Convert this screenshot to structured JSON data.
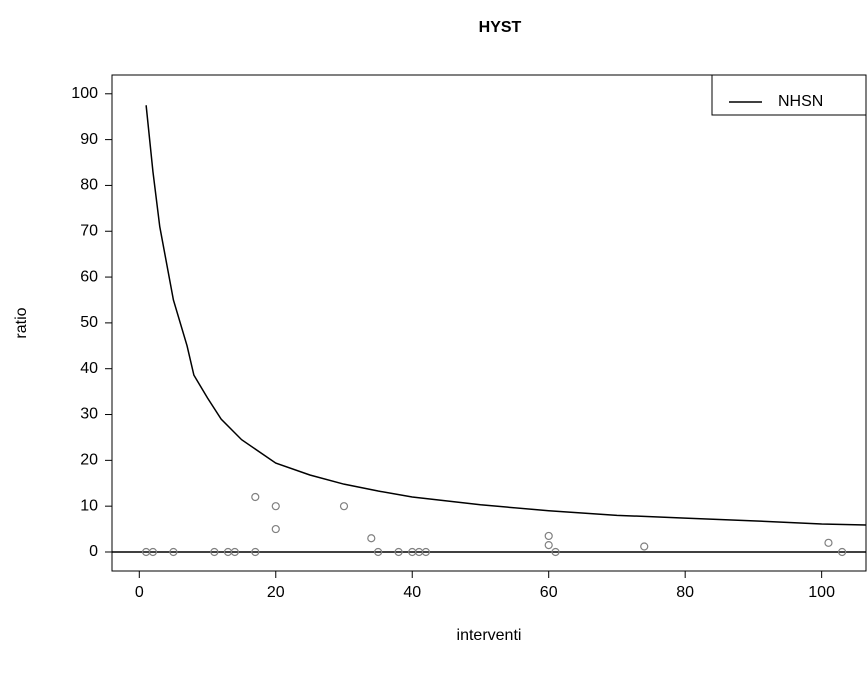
{
  "chart_data": {
    "type": "scatter",
    "title": "HYST",
    "x_label": "interventi",
    "y_label": "ratio",
    "xlim": [
      -4,
      106.5
    ],
    "ylim": [
      -4.15,
      104.1
    ],
    "xticks": [
      0,
      20,
      40,
      60,
      80,
      100
    ],
    "yticks": [
      0,
      10,
      20,
      30,
      40,
      50,
      60,
      70,
      80,
      90,
      100
    ],
    "grid": false,
    "legend": "topright",
    "hlines": [
      0
    ],
    "series": [
      {
        "type": "line",
        "name": "NHSN",
        "color": "#000000",
        "x": [
          1,
          2,
          3,
          5,
          7,
          8,
          10,
          12,
          15,
          20,
          25,
          30,
          35,
          40,
          50,
          60,
          70,
          80,
          90,
          100,
          106.5
        ],
        "values": [
          97.5,
          83,
          71,
          55,
          45,
          38.6,
          33.6,
          29,
          24.5,
          19.4,
          16.8,
          14.8,
          13.3,
          12,
          10.3,
          9,
          8,
          7.4,
          6.8,
          6.1,
          5.9
        ]
      },
      {
        "type": "scatter",
        "color": "#808080",
        "x": [
          1,
          2,
          5,
          11,
          13,
          14,
          17,
          17,
          20,
          20,
          30,
          34,
          35,
          38,
          40,
          41,
          42,
          60,
          60,
          61,
          74,
          101,
          103
        ],
        "values": [
          0,
          0,
          0,
          0,
          0,
          0,
          0,
          12,
          10,
          5,
          10,
          3,
          0,
          0,
          0,
          0,
          0,
          3.5,
          1.5,
          0,
          1.2,
          2,
          0
        ]
      }
    ]
  }
}
